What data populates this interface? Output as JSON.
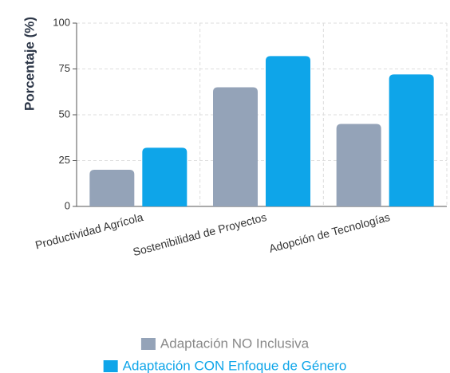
{
  "chart_data": {
    "type": "bar",
    "ylabel": "Porcentaje (%)",
    "categories": [
      "Productividad Agrícola",
      "Sostenibilidad de Proyectos",
      "Adopción de Tecnologías"
    ],
    "series": [
      {
        "name": "Adaptación NO Inclusiva",
        "color": "#94a3b8",
        "values": [
          20,
          65,
          45
        ]
      },
      {
        "name": "Adaptación CON Enfoque de Género",
        "color": "#0ea5e9",
        "values": [
          32,
          82,
          72
        ]
      }
    ],
    "ylim": [
      0,
      100
    ],
    "yticks": [
      0,
      25,
      50,
      75,
      100
    ],
    "grid": true
  }
}
